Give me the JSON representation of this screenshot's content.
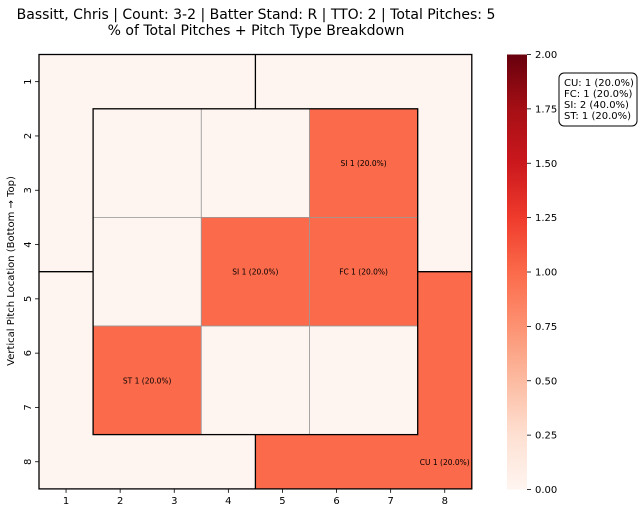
{
  "chart_data": {
    "type": "heatmap",
    "title": "Bassitt, Chris | Count: 3-2 | Batter Stand: R | TTO: 2 | Total Pitches: 5",
    "subtitle": "% of Total Pitches + Pitch Type Breakdown",
    "xlabel": "",
    "ylabel": "Vertical Pitch Location (Bottom → Top)",
    "x_ticks": [
      "1",
      "2",
      "3",
      "4",
      "5",
      "6",
      "7",
      "8"
    ],
    "y_ticks": [
      "1",
      "2",
      "3",
      "4",
      "5",
      "6",
      "7",
      "8"
    ],
    "colorscale": "Reds",
    "colorbar_range": [
      0,
      2
    ],
    "colorbar_ticks": [
      "0.00",
      "0.25",
      "0.50",
      "0.75",
      "1.00",
      "1.25",
      "1.50",
      "1.75",
      "2.00"
    ],
    "zones": [
      {
        "zone": "inner-r1c1",
        "value": 0,
        "label": ""
      },
      {
        "zone": "inner-r1c2",
        "value": 0,
        "label": ""
      },
      {
        "zone": "inner-r1c3",
        "value": 1,
        "label": "SI 1 (20.0%)"
      },
      {
        "zone": "inner-r2c1",
        "value": 0,
        "label": ""
      },
      {
        "zone": "inner-r2c2",
        "value": 1,
        "label": "SI 1 (20.0%)"
      },
      {
        "zone": "inner-r2c3",
        "value": 1,
        "label": "FC 1 (20.0%)"
      },
      {
        "zone": "inner-r3c1",
        "value": 1,
        "label": "ST 1 (20.0%)"
      },
      {
        "zone": "inner-r3c2",
        "value": 0,
        "label": ""
      },
      {
        "zone": "inner-r3c3",
        "value": 0,
        "label": ""
      },
      {
        "zone": "outer-top-left",
        "value": 0,
        "label": ""
      },
      {
        "zone": "outer-top-right",
        "value": 0,
        "label": ""
      },
      {
        "zone": "outer-bottom-left",
        "value": 0,
        "label": ""
      },
      {
        "zone": "outer-bottom-right",
        "value": 1,
        "label": "CU 1 (20.0%)"
      }
    ],
    "legend": [
      "CU: 1 (20.0%)",
      "FC: 1 (20.0%)",
      "SI: 2 (40.0%)",
      "ST: 1 (20.0%)"
    ],
    "legend_placement": "top-right",
    "colors": {
      "zero": "#fff5f0",
      "one": "#fb694a",
      "max": "#67000d"
    }
  }
}
